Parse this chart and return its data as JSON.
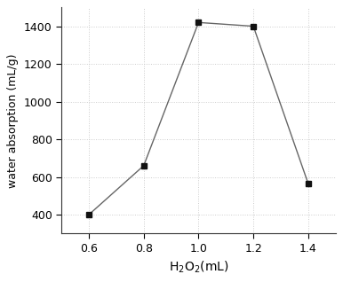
{
  "x": [
    0.6,
    0.8,
    1.0,
    1.2,
    1.4
  ],
  "y": [
    400,
    660,
    1420,
    1400,
    565
  ],
  "xlabel": "H$_2$O$_2$(mL)",
  "ylabel": "water absorption (mL/g)",
  "xlim": [
    0.5,
    1.5
  ],
  "ylim": [
    300,
    1500
  ],
  "yticks": [
    400,
    600,
    800,
    1000,
    1200,
    1400
  ],
  "xticks": [
    0.6,
    0.8,
    1.0,
    1.2,
    1.4
  ],
  "line_color": "#666666",
  "marker": "s",
  "marker_color": "#111111",
  "marker_size": 5,
  "background_color": "#ffffff",
  "grid_color": "#cccccc",
  "xlabel_fontsize": 10,
  "ylabel_fontsize": 9,
  "tick_fontsize": 9
}
